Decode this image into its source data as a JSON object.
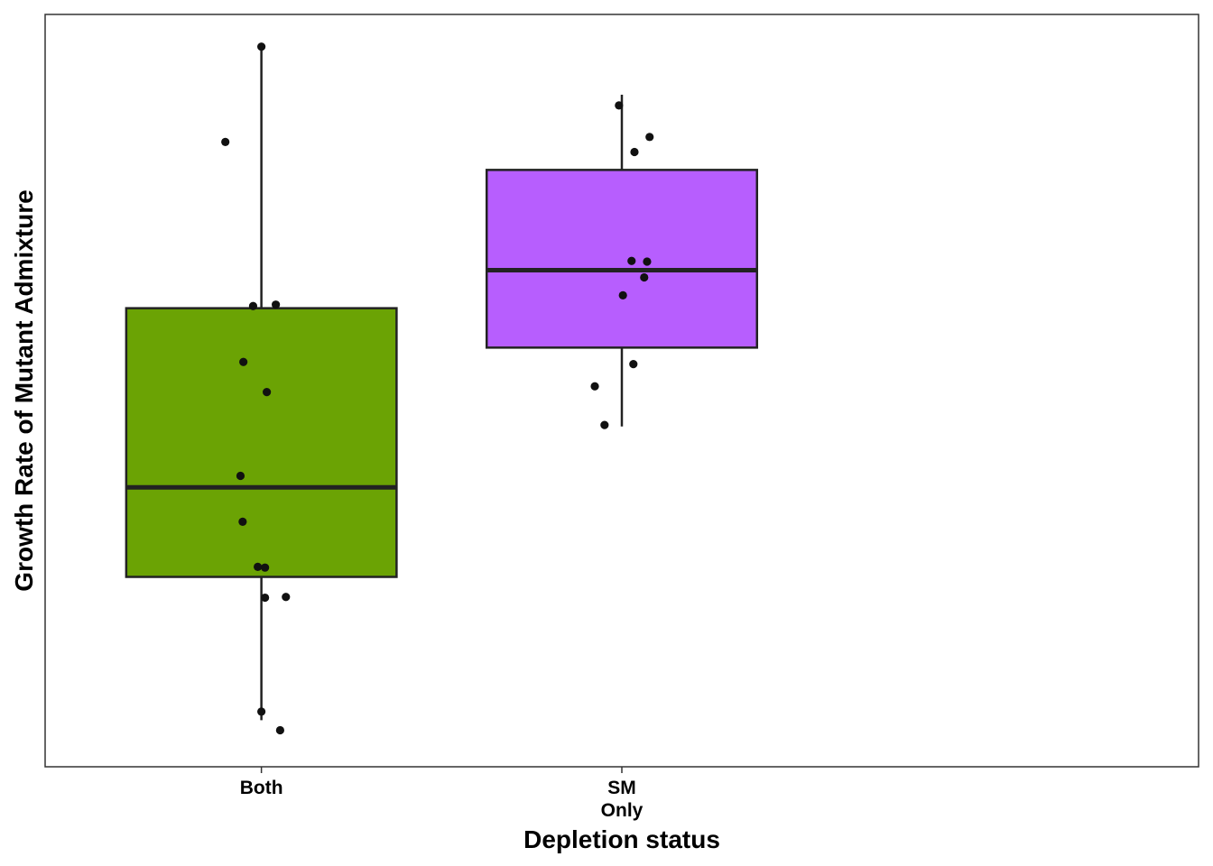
{
  "chart_data": {
    "type": "boxplot",
    "title": "",
    "xlabel": "Depletion status",
    "ylabel": "Growth Rate of Mutant Admixture",
    "y_ticks_shown": false,
    "ylim": [
      -0.02,
      1.03
    ],
    "categories": [
      {
        "label_lines": [
          "Both"
        ],
        "color": "#6BA304"
      },
      {
        "label_lines": [
          "SM",
          "Only"
        ],
        "color": "#B75EFE"
      }
    ],
    "boxes": [
      {
        "category": "Both",
        "whisker_low": 0.045,
        "q1": 0.245,
        "median": 0.37,
        "q3": 0.62,
        "whisker_high": 0.985
      },
      {
        "category": "SM Only",
        "whisker_low": 0.455,
        "q1": 0.565,
        "median": 0.673,
        "q3": 0.813,
        "whisker_high": 0.918
      }
    ],
    "points": [
      {
        "category": "Both",
        "jitter": 0.0,
        "y": 0.985
      },
      {
        "category": "Both",
        "jitter": -0.1,
        "y": 0.852
      },
      {
        "category": "Both",
        "jitter": -0.023,
        "y": 0.623
      },
      {
        "category": "Both",
        "jitter": 0.04,
        "y": 0.625
      },
      {
        "category": "Both",
        "jitter": -0.05,
        "y": 0.545
      },
      {
        "category": "Both",
        "jitter": 0.015,
        "y": 0.503
      },
      {
        "category": "Both",
        "jitter": -0.058,
        "y": 0.386
      },
      {
        "category": "Both",
        "jitter": -0.052,
        "y": 0.322
      },
      {
        "category": "Both",
        "jitter": -0.01,
        "y": 0.259
      },
      {
        "category": "Both",
        "jitter": 0.01,
        "y": 0.258
      },
      {
        "category": "Both",
        "jitter": 0.01,
        "y": 0.216
      },
      {
        "category": "Both",
        "jitter": 0.068,
        "y": 0.217
      },
      {
        "category": "Both",
        "jitter": 0.0,
        "y": 0.057
      },
      {
        "category": "Both",
        "jitter": 0.052,
        "y": 0.031
      },
      {
        "category": "SM Only",
        "jitter": -0.008,
        "y": 0.903
      },
      {
        "category": "SM Only",
        "jitter": 0.077,
        "y": 0.859
      },
      {
        "category": "SM Only",
        "jitter": 0.035,
        "y": 0.838
      },
      {
        "category": "SM Only",
        "jitter": 0.027,
        "y": 0.686
      },
      {
        "category": "SM Only",
        "jitter": 0.07,
        "y": 0.685
      },
      {
        "category": "SM Only",
        "jitter": 0.062,
        "y": 0.663
      },
      {
        "category": "SM Only",
        "jitter": 0.003,
        "y": 0.638
      },
      {
        "category": "SM Only",
        "jitter": 0.032,
        "y": 0.542
      },
      {
        "category": "SM Only",
        "jitter": -0.075,
        "y": 0.511
      },
      {
        "category": "SM Only",
        "jitter": -0.048,
        "y": 0.457
      }
    ]
  }
}
